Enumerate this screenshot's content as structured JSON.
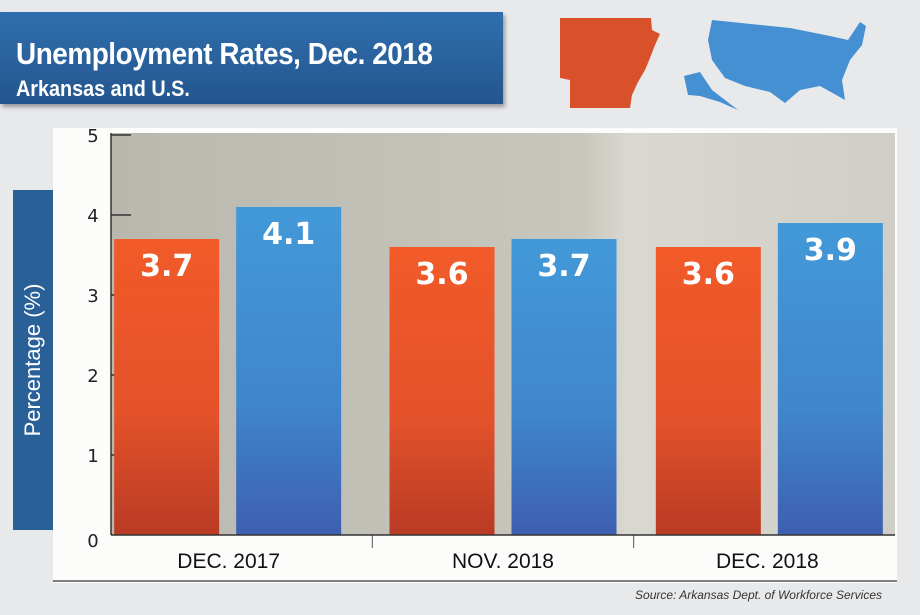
{
  "chart_data": {
    "type": "bar",
    "title": "Unemployment Rates, Dec. 2018",
    "subtitle": "Arkansas and U.S.",
    "ylabel": "Percentage (%)",
    "xlabel": "",
    "ylim": [
      0,
      5
    ],
    "yticks": [
      "0",
      "1",
      "2",
      "3",
      "4",
      "5"
    ],
    "categories": [
      "DEC. 2017",
      "NOV. 2018",
      "DEC. 2018"
    ],
    "series": [
      {
        "name": "Arkansas",
        "color": "#f05a28",
        "values": [
          3.7,
          3.6,
          3.6
        ],
        "labels": [
          "3.7",
          "3.6",
          "3.6"
        ]
      },
      {
        "name": "U.S.",
        "color": "#3f96d6",
        "values": [
          4.1,
          3.7,
          3.9
        ],
        "labels": [
          "4.1",
          "3.7",
          "3.9"
        ]
      }
    ],
    "grid": false,
    "source": "Source: Arkansas Dept. of Workforce Services"
  }
}
